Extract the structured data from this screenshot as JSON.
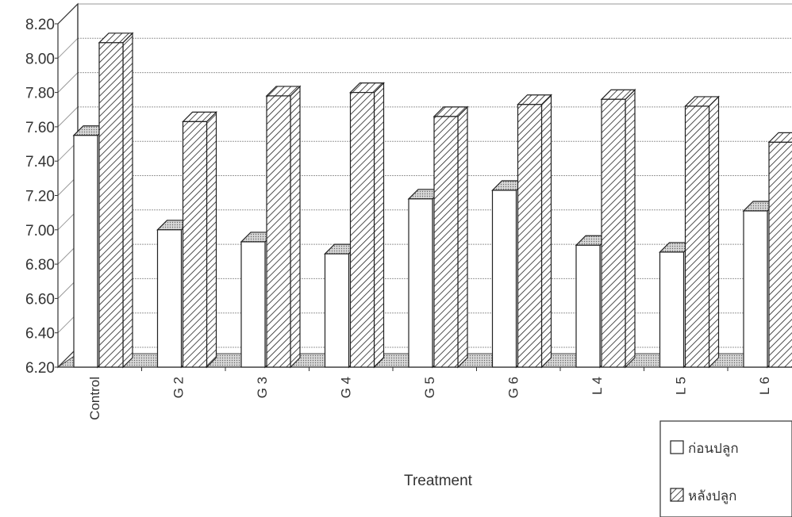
{
  "chart_data": {
    "type": "bar",
    "style": "3d-clustered",
    "xlabel": "Treatment",
    "ylabel": "",
    "ylim": [
      6.2,
      8.2
    ],
    "ytick_step": 0.2,
    "yticks": [
      "6.20",
      "6.40",
      "6.60",
      "6.80",
      "7.00",
      "7.20",
      "7.40",
      "7.60",
      "7.80",
      "8.00",
      "8.20"
    ],
    "grid": true,
    "legend_position": "bottom-right",
    "categories": [
      "Control",
      "G 2",
      "G 3",
      "G 4",
      "G 5",
      "G 6",
      "L 4",
      "L 5",
      "L 6"
    ],
    "series": [
      {
        "name": "ก่อนปลูก",
        "fill": "white",
        "values": [
          7.55,
          7.0,
          6.93,
          6.86,
          7.18,
          7.23,
          6.91,
          6.87,
          7.11
        ]
      },
      {
        "name": "หลังปลูก",
        "fill": "diagonal-hatch",
        "values": [
          8.09,
          7.63,
          7.78,
          7.8,
          7.66,
          7.73,
          7.76,
          7.72,
          7.51
        ]
      }
    ],
    "colors": {
      "bar_stroke": "#222222",
      "grid": "#999999",
      "floor": "#c8c8c8"
    }
  }
}
